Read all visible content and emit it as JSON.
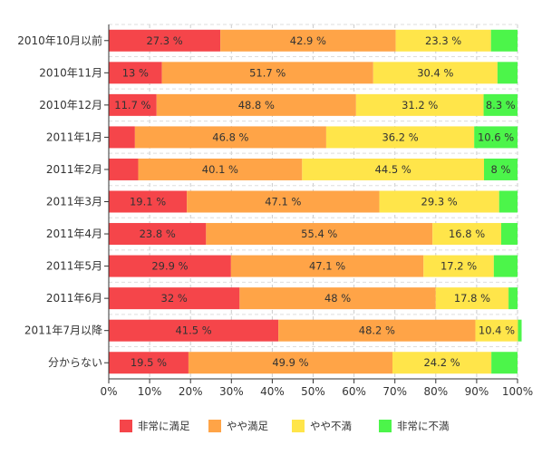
{
  "chart_data": {
    "type": "bar",
    "orientation": "horizontal",
    "stacked": true,
    "percent_stacked": true,
    "categories": [
      "2010年10月以前",
      "2010年11月",
      "2010年12月",
      "2011年1月",
      "2011年2月",
      "2011年3月",
      "2011年4月",
      "2011年5月",
      "2011年6月",
      "2011年7月以降",
      "分からない"
    ],
    "series": [
      {
        "name": "非常に満足",
        "color": "#f5454a",
        "values": [
          27.3,
          13,
          11.7,
          6.4,
          7.2,
          19.1,
          23.8,
          29.9,
          32,
          41.5,
          19.5
        ],
        "labels": [
          "27.3 %",
          "13 %",
          "11.7 %",
          "",
          "",
          "19.1 %",
          "23.8 %",
          "29.9 %",
          "32 %",
          "41.5 %",
          "19.5 %"
        ]
      },
      {
        "name": "やや満足",
        "color": "#ffa447",
        "values": [
          42.9,
          51.7,
          48.8,
          46.8,
          40.1,
          47.1,
          55.4,
          47.1,
          48,
          48.2,
          49.9
        ],
        "labels": [
          "42.9 %",
          "51.7 %",
          "48.8 %",
          "46.8 %",
          "40.1 %",
          "47.1 %",
          "55.4 %",
          "47.1 %",
          "48 %",
          "48.2 %",
          "49.9 %"
        ]
      },
      {
        "name": "やや不満",
        "color": "#ffe54a",
        "values": [
          23.3,
          30.4,
          31.2,
          36.2,
          44.5,
          29.3,
          16.8,
          17.2,
          17.8,
          10.4,
          24.2
        ],
        "labels": [
          "23.3 %",
          "30.4 %",
          "31.2 %",
          "36.2 %",
          "44.5 %",
          "29.3 %",
          "16.8 %",
          "17.2 %",
          "17.8 %",
          "10.4 %",
          "24.2 %"
        ]
      },
      {
        "name": "非常に不満",
        "color": "#4cf54a",
        "values": [
          6.5,
          4.9,
          8.3,
          10.6,
          8.2,
          4.5,
          4.0,
          5.8,
          2.2,
          0.9,
          6.4
        ],
        "labels": [
          "",
          "",
          "8.3 %",
          "10.6 %",
          "8 %",
          "",
          "",
          "",
          "",
          "",
          ""
        ]
      }
    ],
    "xlim": [
      0,
      100
    ],
    "xticks": [
      "0%",
      "10%",
      "20%",
      "30%",
      "40%",
      "50%",
      "60%",
      "70%",
      "80%",
      "90%",
      "100%"
    ],
    "grid": true,
    "legend_position": "bottom"
  }
}
